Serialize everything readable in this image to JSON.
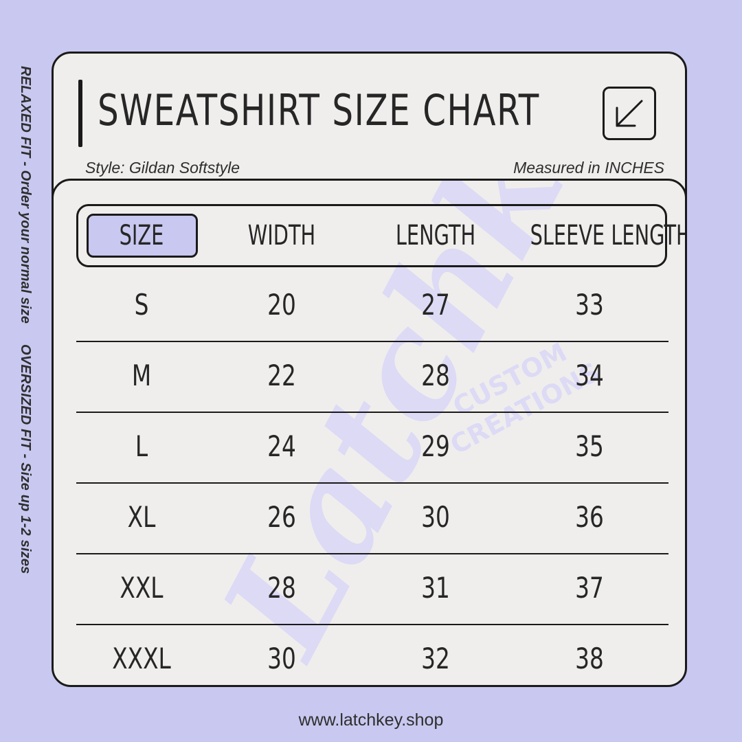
{
  "side_note": {
    "relaxed": "RELAXED FIT - Order your normal size",
    "oversized": "OVERSIZED FIT - Size up 1-2 sizes"
  },
  "header": {
    "title": "SWEATSHIRT SIZE CHART",
    "style": "Style: Gildan Softstyle",
    "measure": "Measured in INCHES",
    "icon": "arrow-down-left-icon"
  },
  "table": {
    "columns": [
      "SIZE",
      "WIDTH",
      "LENGTH",
      "SLEEVE LENGTH"
    ],
    "rows": [
      [
        "S",
        "20",
        "27",
        "33"
      ],
      [
        "M",
        "22",
        "28",
        "34"
      ],
      [
        "L",
        "24",
        "29",
        "35"
      ],
      [
        "XL",
        "26",
        "30",
        "36"
      ],
      [
        "XXL",
        "28",
        "31",
        "37"
      ],
      [
        "XXXL",
        "30",
        "32",
        "38"
      ]
    ]
  },
  "watermark": {
    "script": "Latchkey",
    "line1": "CUSTOM",
    "line2": "CREATIONS"
  },
  "footer": {
    "url": "www.latchkey.shop"
  },
  "colors": {
    "background": "#c8c8f0",
    "card": "#f0eeec",
    "accent": "#c8c8f0",
    "ink": "#1a1a1a",
    "watermark": "#dcdaf5"
  }
}
